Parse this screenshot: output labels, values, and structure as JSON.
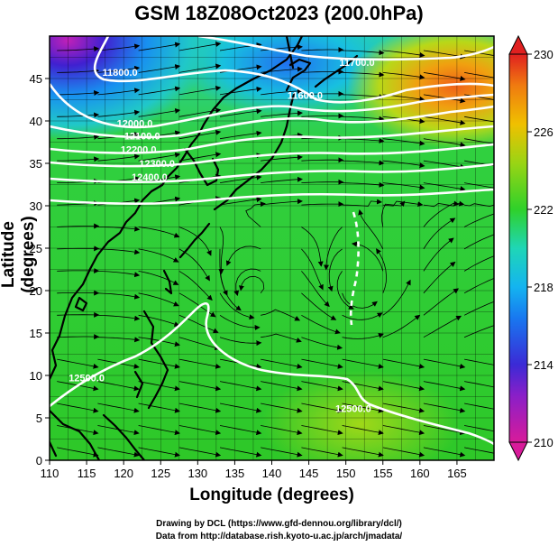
{
  "title": "GSM 18Z08Oct2023 (200.0hPa)",
  "xlabel": "Longitude (degrees)",
  "ylabel": "Latitude  (degrees)",
  "credits": [
    "Drawing by DCL (https://www.gfd-dennou.org/library/dcl/)",
    "Data from http://database.rish.kyoto-u.ac.jp/arch/jmadata/"
  ],
  "map": {
    "lon_range": [
      110,
      170
    ],
    "lat_range": [
      0,
      50
    ],
    "x_ticks": [
      "110",
      "115",
      "120",
      "125",
      "130",
      "135",
      "140",
      "145",
      "150",
      "155",
      "160",
      "165"
    ],
    "y_ticks": [
      "0",
      "5",
      "10",
      "15",
      "20",
      "25",
      "30",
      "35",
      "40",
      "45"
    ],
    "colorbar": {
      "min": 210,
      "max": 230,
      "tick_labels": [
        "210",
        "214",
        "218",
        "222",
        "226",
        "230"
      ],
      "colors": [
        "#d81b9a",
        "#3b2ad6",
        "#14a6f0",
        "#1fd6b6",
        "#2fd12a",
        "#9ad414",
        "#f0c000",
        "#f07a10",
        "#e02020"
      ]
    },
    "contour_labels": [
      {
        "text": "11800.0",
        "lon": 119.5,
        "lat": 45.3
      },
      {
        "text": "11700.0",
        "lon": 151.5,
        "lat": 46.5
      },
      {
        "text": "11600.0",
        "lon": 144.5,
        "lat": 42.6
      },
      {
        "text": "12000.0",
        "lon": 121.5,
        "lat": 39.3
      },
      {
        "text": "12100.0",
        "lon": 122.5,
        "lat": 37.8
      },
      {
        "text": "12200.0",
        "lon": 122.0,
        "lat": 36.2
      },
      {
        "text": "12300.0",
        "lon": 124.5,
        "lat": 34.6
      },
      {
        "text": "12400.0",
        "lon": 123.5,
        "lat": 33.0
      },
      {
        "text": "12500.0",
        "lon": 115.0,
        "lat": 9.3
      },
      {
        "text": "12500.0",
        "lon": 151.0,
        "lat": 5.7
      }
    ]
  }
}
